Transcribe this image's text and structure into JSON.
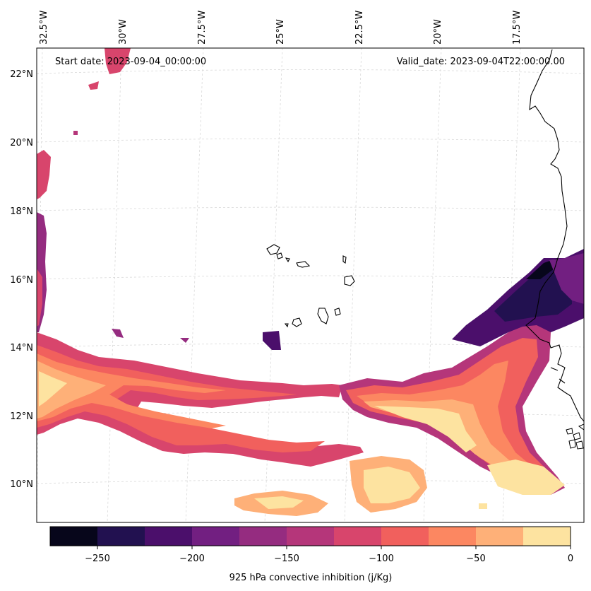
{
  "map": {
    "start_date": "Start date: 2023-09-04_00:00:00",
    "valid_date": "Valid_date: 2023-09-04T22:00:00.00",
    "lon_labels": [
      "32.5°W",
      "30°W",
      "27.5°W",
      "25°W",
      "22.5°W",
      "20°W",
      "17.5°W"
    ],
    "lat_labels": [
      "22°N",
      "20°N",
      "18°N",
      "16°N",
      "14°N",
      "12°N",
      "10°N"
    ],
    "variable": "925 hPa convective inhibition",
    "region": "Eastern tropical Atlantic / West Africa (Cabo Verde islands)"
  },
  "colorbar": {
    "label": "925 hPa convective inhibition (j/Kg)",
    "tick_labels": [
      "−250",
      "−200",
      "−150",
      "−100",
      "−50",
      "0"
    ],
    "levels": [
      -275,
      -250,
      -225,
      -200,
      -175,
      -150,
      -125,
      -100,
      -75,
      -50,
      -25,
      0
    ],
    "colors": [
      "#07061b",
      "#221150",
      "#4b0f6b",
      "#721f81",
      "#952c80",
      "#b5367a",
      "#d8456c",
      "#f1605d",
      "#fc8761",
      "#feb078",
      "#fde3a0"
    ]
  }
}
